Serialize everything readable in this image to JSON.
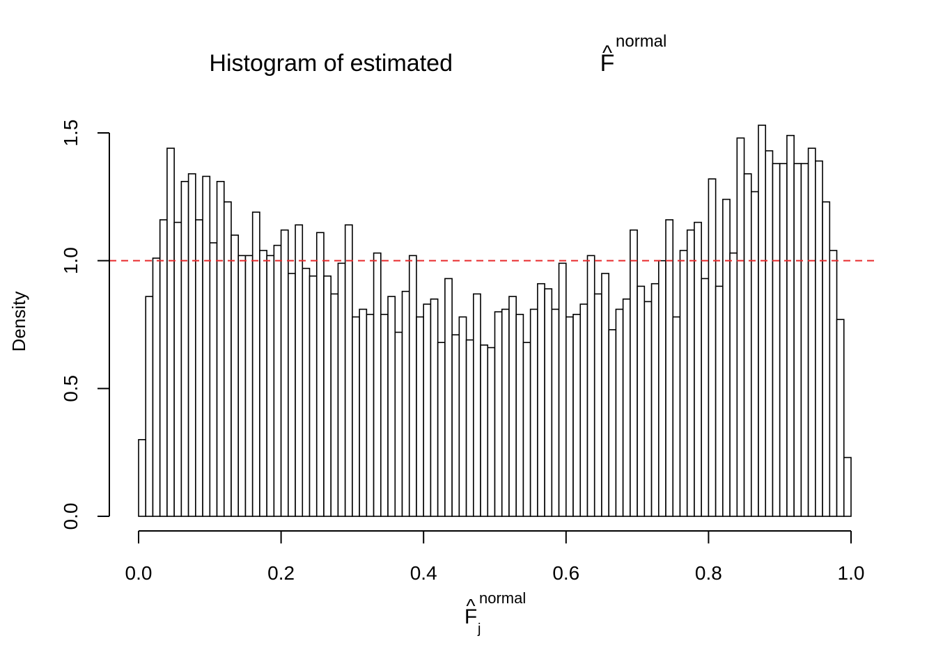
{
  "chart_data": {
    "type": "bar",
    "title_text": "Histogram of estimated ",
    "title_symbol": "F",
    "title_hat": "^",
    "title_superscript": "normal",
    "xlabel_symbol": "F",
    "xlabel_hat": "^",
    "xlabel_subscript": "j",
    "xlabel_superscript": "normal",
    "ylabel": "Density",
    "xlim": [
      0,
      1
    ],
    "ylim": [
      0,
      1.5
    ],
    "x_ticks": [
      "0.0",
      "0.2",
      "0.4",
      "0.6",
      "0.8",
      "1.0"
    ],
    "y_ticks": [
      "0.0",
      "0.5",
      "1.0",
      "1.5"
    ],
    "bin_width": 0.01,
    "bin_start": 0.0,
    "values": [
      0.3,
      0.86,
      1.01,
      1.16,
      1.44,
      1.15,
      1.31,
      1.34,
      1.16,
      1.33,
      1.07,
      1.31,
      1.23,
      1.1,
      1.02,
      1.02,
      1.19,
      1.04,
      1.02,
      1.06,
      1.12,
      0.95,
      1.14,
      0.97,
      0.94,
      1.11,
      0.94,
      0.87,
      0.99,
      1.14,
      0.78,
      0.81,
      0.79,
      1.03,
      0.79,
      0.86,
      0.72,
      0.88,
      1.02,
      0.78,
      0.83,
      0.85,
      0.68,
      0.93,
      0.71,
      0.78,
      0.69,
      0.87,
      0.67,
      0.66,
      0.8,
      0.81,
      0.86,
      0.79,
      0.68,
      0.81,
      0.91,
      0.89,
      0.81,
      0.99,
      0.78,
      0.79,
      0.83,
      1.02,
      0.87,
      0.95,
      0.73,
      0.81,
      0.85,
      1.12,
      0.9,
      0.84,
      0.91,
      1.0,
      1.16,
      0.78,
      1.04,
      1.12,
      1.15,
      0.93,
      1.32,
      0.9,
      1.24,
      1.03,
      1.48,
      1.34,
      1.27,
      1.53,
      1.43,
      1.38,
      1.38,
      1.49,
      1.38,
      1.38,
      1.44,
      1.39,
      1.23,
      1.04,
      0.77,
      0.23
    ],
    "reference_line": {
      "y": 1.0,
      "style": "dashed",
      "color": "#e8292b"
    },
    "bar_fill": "#ffffff",
    "bar_stroke": "#000000"
  }
}
